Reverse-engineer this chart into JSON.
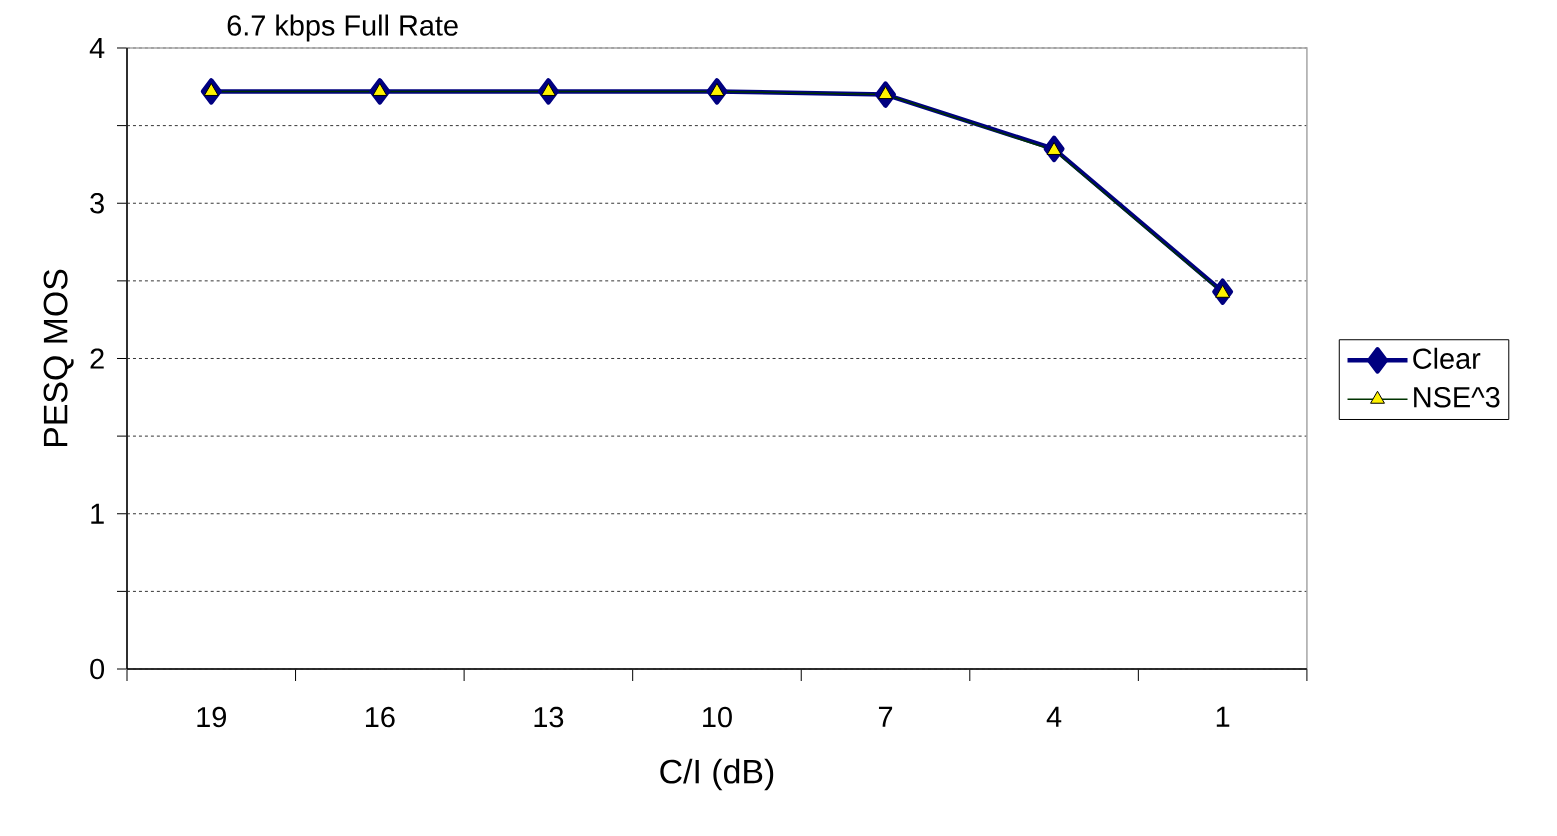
{
  "chart_data": {
    "type": "line",
    "title": "6.7 kbps Full Rate",
    "xlabel": "C/I (dB)",
    "ylabel": "PESQ MOS",
    "categories": [
      "19",
      "16",
      "13",
      "10",
      "7",
      "4",
      "1"
    ],
    "series": [
      {
        "name": "Clear",
        "color": "#000080",
        "marker": "diamond",
        "values": [
          3.72,
          3.72,
          3.72,
          3.72,
          3.7,
          3.35,
          2.43
        ]
      },
      {
        "name": "NSE^3",
        "color": "#003300",
        "marker": "triangle",
        "values": [
          3.72,
          3.72,
          3.72,
          3.72,
          3.7,
          3.34,
          2.42
        ]
      }
    ],
    "ylim": [
      0,
      4
    ],
    "yticks": [
      0,
      {
        "value": 0.5,
        "label": null
      },
      1,
      {
        "value": 1.5,
        "label": null
      },
      2,
      {
        "value": 2.5,
        "label": null
      },
      3,
      {
        "value": 3.5,
        "label": null
      },
      4
    ],
    "grid": "y",
    "legend": "right",
    "line_style": "solid"
  }
}
